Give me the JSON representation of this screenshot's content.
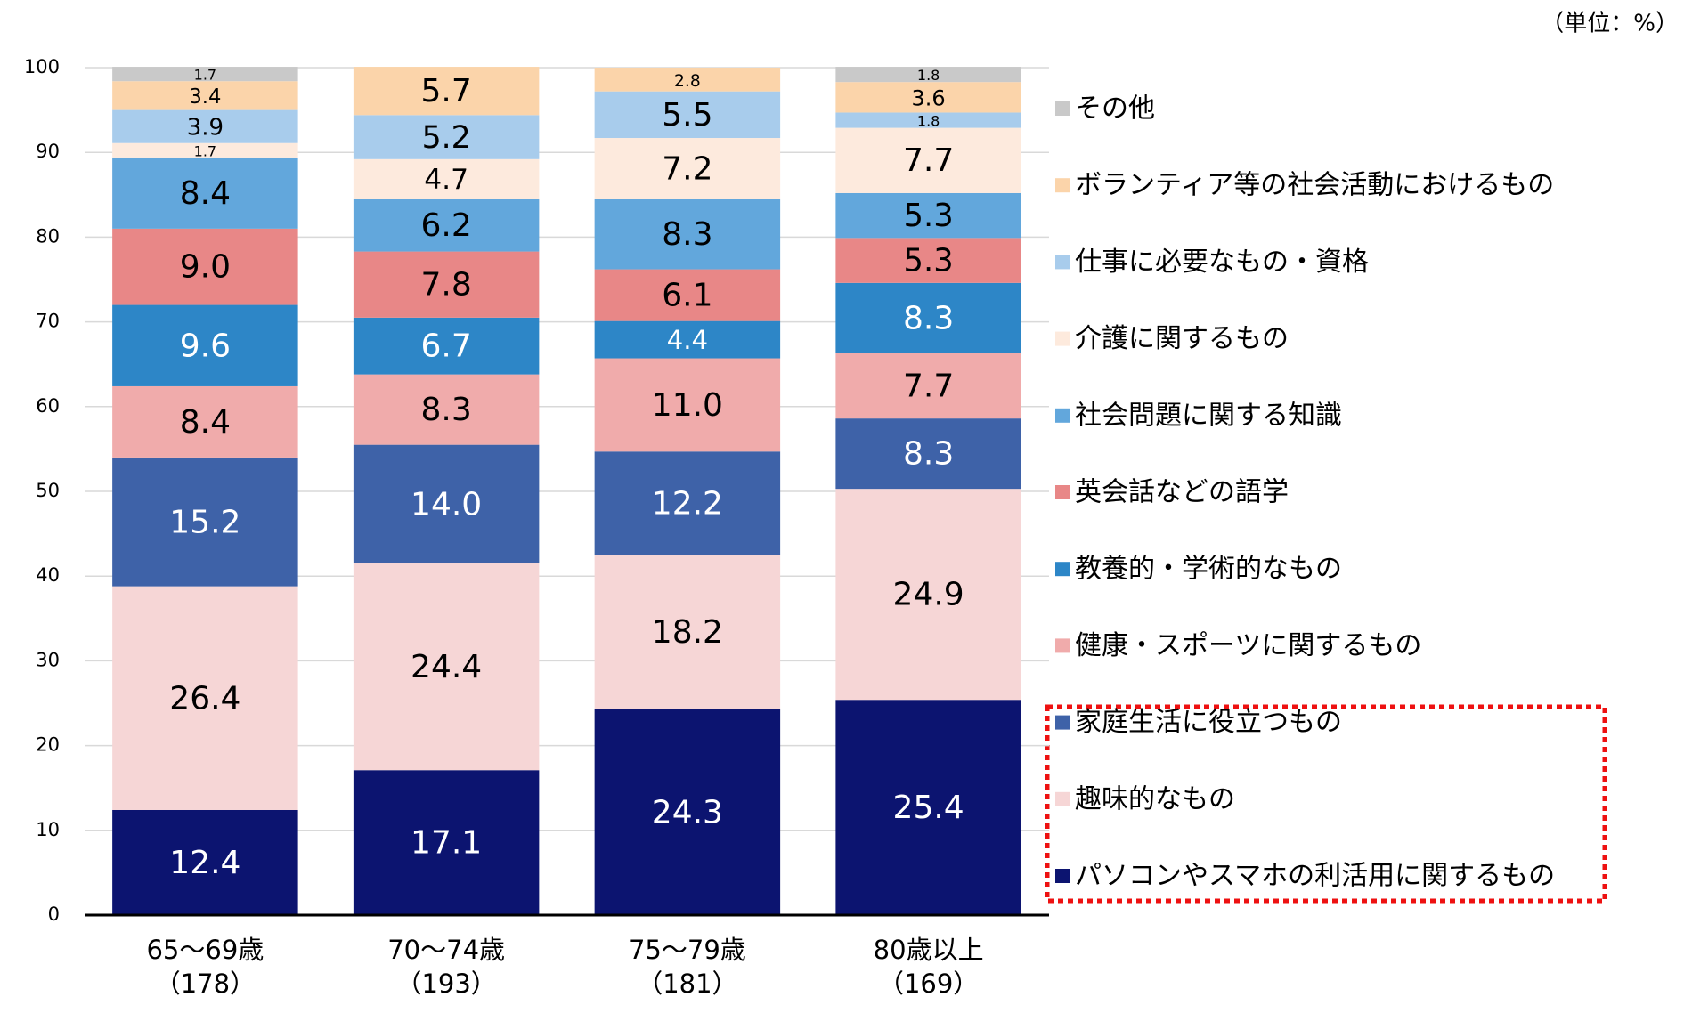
{
  "chart_data": {
    "type": "stacked_bar",
    "unit_note": "（単位：%）",
    "categories": [
      "65～69歳",
      "70～74歳",
      "75～79歳",
      "80歳以上"
    ],
    "sample_sizes": [
      "（178）",
      "（193）",
      "（181）",
      "（169）"
    ],
    "ylim": [
      0,
      100
    ],
    "yticks": [
      0,
      10,
      20,
      30,
      40,
      50,
      60,
      70,
      80,
      90,
      100
    ],
    "grid": true,
    "legend": "right",
    "series": [
      {
        "name": "パソコンやスマホの利活用に関するもの",
        "color": "#0c1470",
        "label_color": "#ffffff",
        "values": [
          12.4,
          17.1,
          24.3,
          25.4
        ],
        "value_labels": [
          "12.4",
          "17.1",
          "24.3",
          "25.4"
        ]
      },
      {
        "name": "趣味的なもの",
        "color": "#f6d6d6",
        "label_color": "#000000",
        "values": [
          26.4,
          24.4,
          18.2,
          24.9
        ],
        "value_labels": [
          "26.4",
          "24.4",
          "18.2",
          "24.9"
        ]
      },
      {
        "name": "家庭生活に役立つもの",
        "color": "#3e62a8",
        "label_color": "#ffffff",
        "values": [
          15.2,
          14.0,
          12.2,
          8.3
        ],
        "value_labels": [
          "15.2",
          "14.0",
          "12.2",
          "8.3"
        ]
      },
      {
        "name": "健康・スポーツに関するもの",
        "color": "#f0abab",
        "label_color": "#000000",
        "values": [
          8.4,
          8.3,
          11.0,
          7.7
        ],
        "value_labels": [
          "8.4",
          "8.3",
          "11.0",
          "7.7"
        ]
      },
      {
        "name": "教養的・学術的なもの",
        "color": "#2d86c7",
        "label_color": "#ffffff",
        "values": [
          9.6,
          6.7,
          4.4,
          8.3
        ],
        "value_labels": [
          "9.6",
          "6.7",
          "4.4",
          "8.3"
        ]
      },
      {
        "name": "英会話などの語学",
        "color": "#e88787",
        "label_color": "#000000",
        "values": [
          9.0,
          7.8,
          6.1,
          5.3
        ],
        "value_labels": [
          "9.0",
          "7.8",
          "6.1",
          "5.3"
        ]
      },
      {
        "name": "社会問題に関する知識",
        "color": "#62a7dc",
        "label_color": "#000000",
        "values": [
          8.4,
          6.2,
          8.3,
          5.3
        ],
        "value_labels": [
          "8.4",
          "6.2",
          "8.3",
          "5.3"
        ]
      },
      {
        "name": "介護に関するもの",
        "color": "#fdeadd",
        "label_color": "#000000",
        "values": [
          1.7,
          4.7,
          7.2,
          7.7
        ],
        "value_labels": [
          "1.7",
          "4.7",
          "7.2",
          "7.7"
        ]
      },
      {
        "name": "仕事に必要なもの・資格",
        "color": "#a8ccec",
        "label_color": "#000000",
        "values": [
          3.9,
          5.2,
          5.5,
          1.8
        ],
        "value_labels": [
          "3.9",
          "5.2",
          "5.5",
          "1.8"
        ]
      },
      {
        "name": "ボランティア等の社会活動におけるもの",
        "color": "#fbd4aa",
        "label_color": "#000000",
        "values": [
          3.4,
          5.7,
          2.8,
          3.6
        ],
        "value_labels": [
          "3.4",
          "5.7",
          "2.8",
          "3.6"
        ]
      },
      {
        "name": "その他",
        "color": "#c9c9c9",
        "label_color": "#000000",
        "values": [
          1.7,
          null,
          null,
          1.8
        ],
        "value_labels": [
          "1.7",
          null,
          null,
          "1.8"
        ]
      }
    ]
  }
}
